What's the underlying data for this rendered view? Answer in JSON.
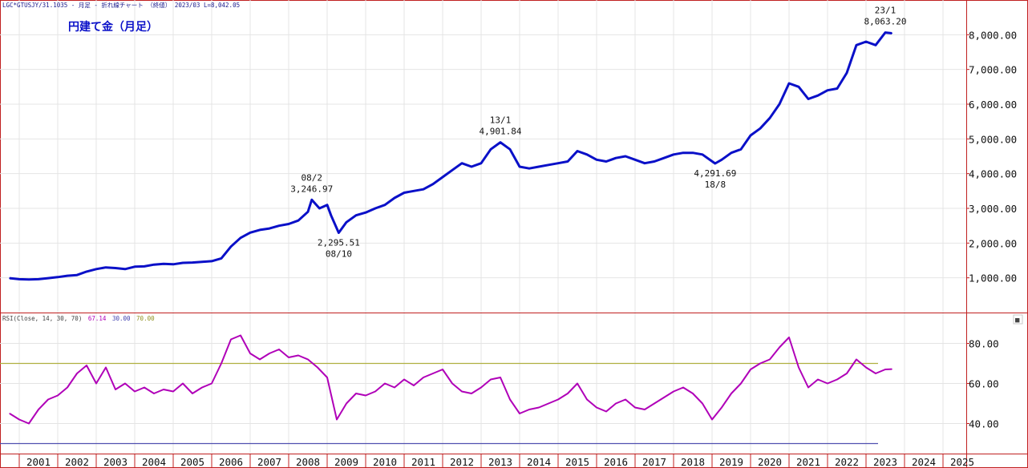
{
  "header": {
    "info_main": "LGC*GTUSJY/31.1035 - 月足 - 折れ線チャート （終値） 2023/03 L=8,042.05",
    "rsi_label": "RSI(Close, 14, 30, 70)",
    "rsi_values": [
      "67.14",
      "30.00",
      "70.00"
    ]
  },
  "colors": {
    "price_line": "#0a10c8",
    "rsi_line": "#b000b8",
    "level_70": "#b0b040",
    "level_30": "#5050b0",
    "axis_frame": "#c02020",
    "grid": "#e4e4e4"
  },
  "chart_data": [
    {
      "type": "line",
      "title": "円建て金（月足）",
      "x_unit": "year",
      "ylim": [
        0,
        9000
      ],
      "y_ticks": [
        1000,
        2000,
        3000,
        4000,
        5000,
        6000,
        7000,
        8000
      ],
      "y_tick_labels": [
        "1,000.00",
        "2,000.00",
        "3,000.00",
        "4,000.00",
        "5,000.00",
        "6,000.00",
        "7,000.00",
        "8,000.00"
      ],
      "series": [
        {
          "points": [
            [
              2000.25,
              990
            ],
            [
              2000.5,
              960
            ],
            [
              2000.75,
              950
            ],
            [
              2001.0,
              960
            ],
            [
              2001.25,
              990
            ],
            [
              2001.5,
              1020
            ],
            [
              2001.75,
              1060
            ],
            [
              2002.0,
              1080
            ],
            [
              2002.25,
              1180
            ],
            [
              2002.5,
              1250
            ],
            [
              2002.75,
              1300
            ],
            [
              2003.0,
              1280
            ],
            [
              2003.25,
              1250
            ],
            [
              2003.5,
              1320
            ],
            [
              2003.75,
              1330
            ],
            [
              2004.0,
              1380
            ],
            [
              2004.25,
              1400
            ],
            [
              2004.5,
              1390
            ],
            [
              2004.75,
              1430
            ],
            [
              2005.0,
              1440
            ],
            [
              2005.25,
              1460
            ],
            [
              2005.5,
              1480
            ],
            [
              2005.75,
              1560
            ],
            [
              2006.0,
              1900
            ],
            [
              2006.25,
              2150
            ],
            [
              2006.5,
              2300
            ],
            [
              2006.75,
              2380
            ],
            [
              2007.0,
              2420
            ],
            [
              2007.25,
              2500
            ],
            [
              2007.5,
              2550
            ],
            [
              2007.75,
              2650
            ],
            [
              2008.0,
              2900
            ],
            [
              2008.1,
              3246.97
            ],
            [
              2008.3,
              3000
            ],
            [
              2008.5,
              3100
            ],
            [
              2008.6,
              2800
            ],
            [
              2008.8,
              2295.51
            ],
            [
              2009.0,
              2600
            ],
            [
              2009.25,
              2800
            ],
            [
              2009.5,
              2880
            ],
            [
              2009.75,
              3000
            ],
            [
              2010.0,
              3100
            ],
            [
              2010.25,
              3300
            ],
            [
              2010.5,
              3450
            ],
            [
              2010.75,
              3500
            ],
            [
              2011.0,
              3550
            ],
            [
              2011.25,
              3700
            ],
            [
              2011.5,
              3900
            ],
            [
              2011.75,
              4100
            ],
            [
              2012.0,
              4300
            ],
            [
              2012.25,
              4200
            ],
            [
              2012.5,
              4300
            ],
            [
              2012.75,
              4700
            ],
            [
              2013.0,
              4901.84
            ],
            [
              2013.25,
              4700
            ],
            [
              2013.5,
              4200
            ],
            [
              2013.75,
              4150
            ],
            [
              2014.0,
              4200
            ],
            [
              2014.25,
              4250
            ],
            [
              2014.5,
              4300
            ],
            [
              2014.75,
              4350
            ],
            [
              2015.0,
              4650
            ],
            [
              2015.25,
              4550
            ],
            [
              2015.5,
              4400
            ],
            [
              2015.75,
              4350
            ],
            [
              2016.0,
              4450
            ],
            [
              2016.25,
              4500
            ],
            [
              2016.5,
              4400
            ],
            [
              2016.75,
              4300
            ],
            [
              2017.0,
              4350
            ],
            [
              2017.25,
              4450
            ],
            [
              2017.5,
              4550
            ],
            [
              2017.75,
              4600
            ],
            [
              2018.0,
              4600
            ],
            [
              2018.25,
              4550
            ],
            [
              2018.58,
              4291.69
            ],
            [
              2018.75,
              4400
            ],
            [
              2019.0,
              4600
            ],
            [
              2019.25,
              4700
            ],
            [
              2019.5,
              5100
            ],
            [
              2019.75,
              5300
            ],
            [
              2020.0,
              5600
            ],
            [
              2020.25,
              6000
            ],
            [
              2020.5,
              6600
            ],
            [
              2020.75,
              6500
            ],
            [
              2021.0,
              6150
            ],
            [
              2021.25,
              6250
            ],
            [
              2021.5,
              6400
            ],
            [
              2021.75,
              6450
            ],
            [
              2022.0,
              6900
            ],
            [
              2022.25,
              7700
            ],
            [
              2022.5,
              7800
            ],
            [
              2022.75,
              7700
            ],
            [
              2023.0,
              8063.2
            ],
            [
              2023.17,
              8042.05
            ]
          ]
        }
      ],
      "annotations": [
        {
          "x": 2008.1,
          "y": 3246.97,
          "label_top": "08/2",
          "label_bottom": "3,246.97",
          "pos": "above"
        },
        {
          "x": 2008.8,
          "y": 2295.51,
          "label_top": "2,295.51",
          "label_bottom": "08/10",
          "pos": "below"
        },
        {
          "x": 2013.0,
          "y": 4901.84,
          "label_top": "13/1",
          "label_bottom": "4,901.84",
          "pos": "above"
        },
        {
          "x": 2018.58,
          "y": 4291.69,
          "label_top": "4,291.69",
          "label_bottom": "18/8",
          "pos": "below"
        },
        {
          "x": 2023.0,
          "y": 8063.2,
          "label_top": "23/1",
          "label_bottom": "8,063.20",
          "pos": "above"
        }
      ]
    },
    {
      "type": "line",
      "x_unit": "year",
      "ylim": [
        25,
        95
      ],
      "y_ticks": [
        40,
        60,
        80
      ],
      "y_tick_labels": [
        "40.00",
        "60.00",
        "80.00"
      ],
      "levels": [
        70,
        30
      ],
      "series": [
        {
          "points": [
            [
              2000.25,
              45
            ],
            [
              2000.5,
              42
            ],
            [
              2000.75,
              40
            ],
            [
              2001.0,
              47
            ],
            [
              2001.25,
              52
            ],
            [
              2001.5,
              54
            ],
            [
              2001.75,
              58
            ],
            [
              2002.0,
              65
            ],
            [
              2002.25,
              69
            ],
            [
              2002.5,
              60
            ],
            [
              2002.75,
              68
            ],
            [
              2003.0,
              57
            ],
            [
              2003.25,
              60
            ],
            [
              2003.5,
              56
            ],
            [
              2003.75,
              58
            ],
            [
              2004.0,
              55
            ],
            [
              2004.25,
              57
            ],
            [
              2004.5,
              56
            ],
            [
              2004.75,
              60
            ],
            [
              2005.0,
              55
            ],
            [
              2005.25,
              58
            ],
            [
              2005.5,
              60
            ],
            [
              2005.75,
              70
            ],
            [
              2006.0,
              82
            ],
            [
              2006.25,
              84
            ],
            [
              2006.5,
              75
            ],
            [
              2006.75,
              72
            ],
            [
              2007.0,
              75
            ],
            [
              2007.25,
              77
            ],
            [
              2007.5,
              73
            ],
            [
              2007.75,
              74
            ],
            [
              2008.0,
              72
            ],
            [
              2008.25,
              68
            ],
            [
              2008.5,
              63
            ],
            [
              2008.75,
              42
            ],
            [
              2009.0,
              50
            ],
            [
              2009.25,
              55
            ],
            [
              2009.5,
              54
            ],
            [
              2009.75,
              56
            ],
            [
              2010.0,
              60
            ],
            [
              2010.25,
              58
            ],
            [
              2010.5,
              62
            ],
            [
              2010.75,
              59
            ],
            [
              2011.0,
              63
            ],
            [
              2011.25,
              65
            ],
            [
              2011.5,
              67
            ],
            [
              2011.75,
              60
            ],
            [
              2012.0,
              56
            ],
            [
              2012.25,
              55
            ],
            [
              2012.5,
              58
            ],
            [
              2012.75,
              62
            ],
            [
              2013.0,
              63
            ],
            [
              2013.25,
              52
            ],
            [
              2013.5,
              45
            ],
            [
              2013.75,
              47
            ],
            [
              2014.0,
              48
            ],
            [
              2014.25,
              50
            ],
            [
              2014.5,
              52
            ],
            [
              2014.75,
              55
            ],
            [
              2015.0,
              60
            ],
            [
              2015.25,
              52
            ],
            [
              2015.5,
              48
            ],
            [
              2015.75,
              46
            ],
            [
              2016.0,
              50
            ],
            [
              2016.25,
              52
            ],
            [
              2016.5,
              48
            ],
            [
              2016.75,
              47
            ],
            [
              2017.0,
              50
            ],
            [
              2017.25,
              53
            ],
            [
              2017.5,
              56
            ],
            [
              2017.75,
              58
            ],
            [
              2018.0,
              55
            ],
            [
              2018.25,
              50
            ],
            [
              2018.5,
              42
            ],
            [
              2018.75,
              48
            ],
            [
              2019.0,
              55
            ],
            [
              2019.25,
              60
            ],
            [
              2019.5,
              67
            ],
            [
              2019.75,
              70
            ],
            [
              2020.0,
              72
            ],
            [
              2020.25,
              78
            ],
            [
              2020.5,
              83
            ],
            [
              2020.75,
              68
            ],
            [
              2021.0,
              58
            ],
            [
              2021.25,
              62
            ],
            [
              2021.5,
              60
            ],
            [
              2021.75,
              62
            ],
            [
              2022.0,
              65
            ],
            [
              2022.25,
              72
            ],
            [
              2022.5,
              68
            ],
            [
              2022.75,
              65
            ],
            [
              2023.0,
              67
            ],
            [
              2023.17,
              67.14
            ]
          ]
        }
      ]
    }
  ],
  "x_axis": {
    "years": [
      "2001",
      "2002",
      "2003",
      "2004",
      "2005",
      "2006",
      "2007",
      "2008",
      "2009",
      "2010",
      "2011",
      "2012",
      "2013",
      "2014",
      "2015",
      "2016",
      "2017",
      "2018",
      "2019",
      "2020",
      "2021",
      "2022",
      "2023",
      "2024",
      "2025"
    ]
  },
  "controls": {
    "panel_button_glyph": "■"
  }
}
